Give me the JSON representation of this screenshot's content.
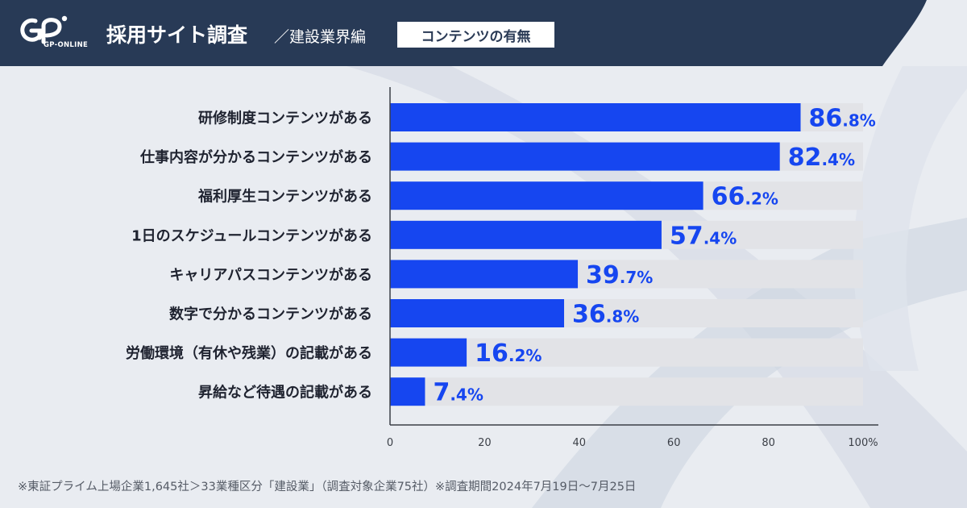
{
  "header": {
    "logo_text": "GP-ONLINE",
    "title": "採用サイト調査",
    "subtitle": "／建設業界編",
    "badge": "コンテンツの有無"
  },
  "colors": {
    "bar": "#1646f0",
    "track": "#e2e3e7",
    "header": "#283a56",
    "value_text": "#1646f0",
    "label_text": "#1f2330"
  },
  "chart_data": {
    "type": "bar",
    "orientation": "horizontal",
    "categories": [
      "研修制度コンテンツがある",
      "仕事内容が分かるコンテンツがある",
      "福利厚生コンテンツがある",
      "1日のスケジュールコンテンツがある",
      "キャリアパスコンテンツがある",
      "数字で分かるコンテンツがある",
      "労働環境（有休や残業）の記載がある",
      "昇給など待遇の記載がある"
    ],
    "values": [
      86.8,
      82.4,
      66.2,
      57.4,
      39.7,
      36.8,
      16.2,
      7.4
    ],
    "value_labels": [
      {
        "int": "86",
        "dec": ".8%"
      },
      {
        "int": "82",
        "dec": ".4%"
      },
      {
        "int": "66",
        "dec": ".2%"
      },
      {
        "int": "57",
        "dec": ".4%"
      },
      {
        "int": "39",
        "dec": ".7%"
      },
      {
        "int": "36",
        "dec": ".8%"
      },
      {
        "int": "16",
        "dec": ".2%"
      },
      {
        "int": "7",
        "dec": ".4%"
      }
    ],
    "xlim": [
      0,
      100
    ],
    "xticks": [
      0,
      20,
      40,
      60,
      80,
      100
    ],
    "xtick_labels": [
      "0",
      "20",
      "40",
      "60",
      "80",
      "100%"
    ],
    "title": "",
    "xlabel": "",
    "ylabel": ""
  },
  "footer": {
    "note": "※東証プライム上場企業1,645社＞33業種区分「建設業」（調査対象企業75社）※調査期間2024年7月19日〜7月25日"
  }
}
